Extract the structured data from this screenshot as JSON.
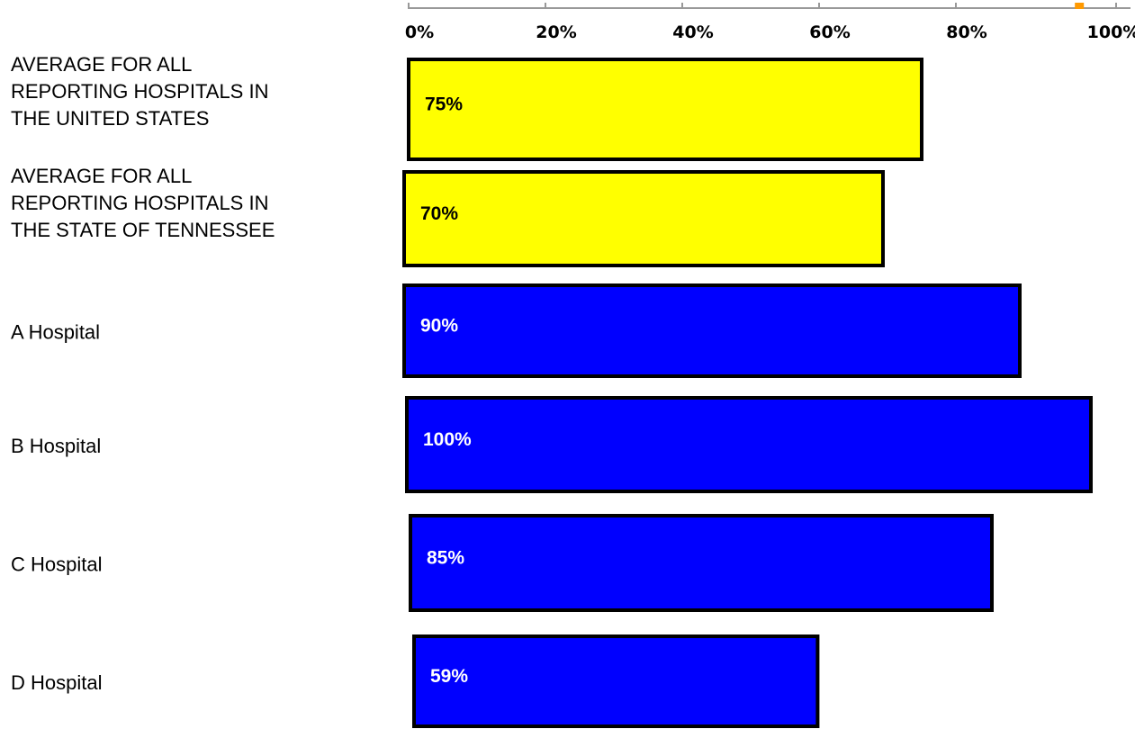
{
  "chart_data": {
    "type": "bar",
    "orientation": "horizontal",
    "title": "",
    "xlabel": "",
    "ylabel": "",
    "xlim": [
      0,
      100
    ],
    "x_ticks": [
      "0%",
      "20%",
      "40%",
      "60%",
      "80%",
      "100%"
    ],
    "x_marker_value": 97,
    "grid": false,
    "legend": "none",
    "categories": [
      "AVERAGE FOR ALL REPORTING HOSPITALS IN THE UNITED STATES",
      "AVERAGE FOR ALL REPORTING HOSPITALS IN THE STATE OF TENNESSEE",
      "A Hospital",
      "B Hospital",
      "C Hospital",
      "D Hospital"
    ],
    "values": [
      75,
      70,
      90,
      100,
      85,
      59
    ],
    "value_labels": [
      "75%",
      "70%",
      "90%",
      "100%",
      "85%",
      "59%"
    ],
    "bar_colors": [
      "#ffff00",
      "#ffff00",
      "#0000ff",
      "#0000ff",
      "#0000ff",
      "#0000ff"
    ],
    "value_label_colors": [
      "#000000",
      "#000000",
      "#ffffff",
      "#ffffff",
      "#ffffff",
      "#ffffff"
    ],
    "bar_border_color": "#000000",
    "axis_color": "#999999",
    "marker_color": "#ff9900"
  }
}
